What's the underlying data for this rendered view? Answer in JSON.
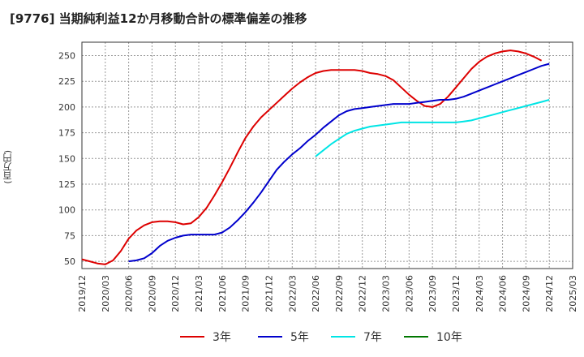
{
  "chart_data": {
    "type": "line",
    "title": "[9776]  当期純利益12か月移動合計の標準偏差の推移",
    "ylabel": "(百万円)",
    "xlabel": "",
    "ylim": [
      43,
      263
    ],
    "yticks": [
      50,
      75,
      100,
      125,
      150,
      175,
      200,
      225,
      250
    ],
    "xticks": [
      "2019/12",
      "2020/03",
      "2020/06",
      "2020/09",
      "2020/12",
      "2021/03",
      "2021/06",
      "2021/09",
      "2021/12",
      "2022/03",
      "2022/06",
      "2022/09",
      "2022/12",
      "2023/03",
      "2023/06",
      "2023/09",
      "2023/12",
      "2024/03",
      "2024/06",
      "2024/09",
      "2024/12",
      "2025/03"
    ],
    "grid": true,
    "legend_position": "bottom",
    "series": [
      {
        "name": "3年",
        "color": "#dd0000",
        "points": [
          [
            0,
            52
          ],
          [
            1,
            50
          ],
          [
            2,
            48
          ],
          [
            3,
            47
          ],
          [
            4,
            51
          ],
          [
            5,
            60
          ],
          [
            6,
            72
          ],
          [
            7,
            80
          ],
          [
            8,
            85
          ],
          [
            9,
            88
          ],
          [
            10,
            89
          ],
          [
            11,
            89
          ],
          [
            12,
            88
          ],
          [
            13,
            86
          ],
          [
            14,
            87
          ],
          [
            15,
            93
          ],
          [
            16,
            102
          ],
          [
            17,
            114
          ],
          [
            18,
            127
          ],
          [
            19,
            141
          ],
          [
            20,
            156
          ],
          [
            21,
            170
          ],
          [
            22,
            181
          ],
          [
            23,
            190
          ],
          [
            24,
            197
          ],
          [
            25,
            204
          ],
          [
            26,
            211
          ],
          [
            27,
            218
          ],
          [
            28,
            224
          ],
          [
            29,
            229
          ],
          [
            30,
            233
          ],
          [
            31,
            235
          ],
          [
            32,
            236
          ],
          [
            33,
            236
          ],
          [
            34,
            236
          ],
          [
            35,
            236
          ],
          [
            36,
            235
          ],
          [
            37,
            233
          ],
          [
            38,
            232
          ],
          [
            39,
            230
          ],
          [
            40,
            226
          ],
          [
            41,
            219
          ],
          [
            42,
            212
          ],
          [
            43,
            206
          ],
          [
            44,
            201
          ],
          [
            45,
            200
          ],
          [
            46,
            203
          ],
          [
            47,
            210
          ],
          [
            48,
            219
          ],
          [
            49,
            228
          ],
          [
            50,
            237
          ],
          [
            51,
            244
          ],
          [
            52,
            249
          ],
          [
            53,
            252
          ],
          [
            54,
            254
          ],
          [
            55,
            255
          ],
          [
            56,
            254
          ],
          [
            57,
            252
          ],
          [
            58,
            249
          ],
          [
            59,
            245
          ]
        ]
      },
      {
        "name": "5年",
        "color": "#0000cc",
        "points": [
          [
            6,
            50
          ],
          [
            7,
            51
          ],
          [
            8,
            53
          ],
          [
            9,
            58
          ],
          [
            10,
            65
          ],
          [
            11,
            70
          ],
          [
            12,
            73
          ],
          [
            13,
            75
          ],
          [
            14,
            76
          ],
          [
            15,
            76
          ],
          [
            16,
            76
          ],
          [
            17,
            76
          ],
          [
            18,
            78
          ],
          [
            19,
            83
          ],
          [
            20,
            90
          ],
          [
            21,
            98
          ],
          [
            22,
            107
          ],
          [
            23,
            117
          ],
          [
            24,
            128
          ],
          [
            25,
            139
          ],
          [
            26,
            147
          ],
          [
            27,
            154
          ],
          [
            28,
            160
          ],
          [
            29,
            167
          ],
          [
            30,
            173
          ],
          [
            31,
            180
          ],
          [
            32,
            186
          ],
          [
            33,
            192
          ],
          [
            34,
            196
          ],
          [
            35,
            198
          ],
          [
            36,
            199
          ],
          [
            37,
            200
          ],
          [
            38,
            201
          ],
          [
            39,
            202
          ],
          [
            40,
            203
          ],
          [
            41,
            203
          ],
          [
            42,
            203
          ],
          [
            43,
            204
          ],
          [
            44,
            205
          ],
          [
            45,
            206
          ],
          [
            46,
            207
          ],
          [
            47,
            207
          ],
          [
            48,
            208
          ],
          [
            49,
            210
          ],
          [
            50,
            213
          ],
          [
            51,
            216
          ],
          [
            52,
            219
          ],
          [
            53,
            222
          ],
          [
            54,
            225
          ],
          [
            55,
            228
          ],
          [
            56,
            231
          ],
          [
            57,
            234
          ],
          [
            58,
            237
          ],
          [
            59,
            240
          ],
          [
            60,
            242
          ]
        ]
      },
      {
        "name": "7年",
        "color": "#00e5e5",
        "points": [
          [
            30,
            152
          ],
          [
            31,
            158
          ],
          [
            32,
            164
          ],
          [
            33,
            169
          ],
          [
            34,
            174
          ],
          [
            35,
            177
          ],
          [
            36,
            179
          ],
          [
            37,
            181
          ],
          [
            38,
            182
          ],
          [
            39,
            183
          ],
          [
            40,
            184
          ],
          [
            41,
            185
          ],
          [
            42,
            185
          ],
          [
            43,
            185
          ],
          [
            44,
            185
          ],
          [
            45,
            185
          ],
          [
            46,
            185
          ],
          [
            47,
            185
          ],
          [
            48,
            185
          ],
          [
            49,
            186
          ],
          [
            50,
            187
          ],
          [
            51,
            189
          ],
          [
            52,
            191
          ],
          [
            53,
            193
          ],
          [
            54,
            195
          ],
          [
            55,
            197
          ],
          [
            56,
            199
          ],
          [
            57,
            201
          ],
          [
            58,
            203
          ],
          [
            59,
            205
          ],
          [
            60,
            207
          ]
        ]
      },
      {
        "name": "10年",
        "color": "#007700",
        "points": []
      }
    ]
  }
}
